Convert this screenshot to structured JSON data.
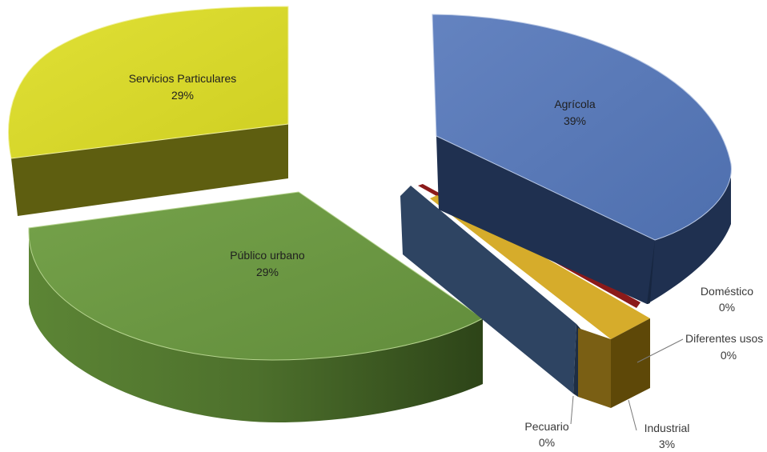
{
  "chart_data": {
    "type": "pie",
    "style": "3d-exploded",
    "legend": "none",
    "slices": [
      {
        "label": "Agrícola",
        "percent_label": "39%",
        "value": 39,
        "color": "#5b7bb9"
      },
      {
        "label": "Doméstico",
        "percent_label": "0%",
        "value": 0,
        "color": "#8b1a1a"
      },
      {
        "label": "Diferentes usos",
        "percent_label": "0%",
        "value": 0,
        "color": "#c9a227"
      },
      {
        "label": "Industrial",
        "percent_label": "3%",
        "value": 3,
        "color": "#b8941d"
      },
      {
        "label": "Pecuario",
        "percent_label": "0%",
        "value": 0,
        "color": "#2e4260"
      },
      {
        "label": "Público urbano",
        "percent_label": "29%",
        "value": 29,
        "color": "#6f9a45"
      },
      {
        "label": "Servicios Particulares",
        "percent_label": "29%",
        "value": 29,
        "color": "#d9d92a"
      }
    ]
  }
}
